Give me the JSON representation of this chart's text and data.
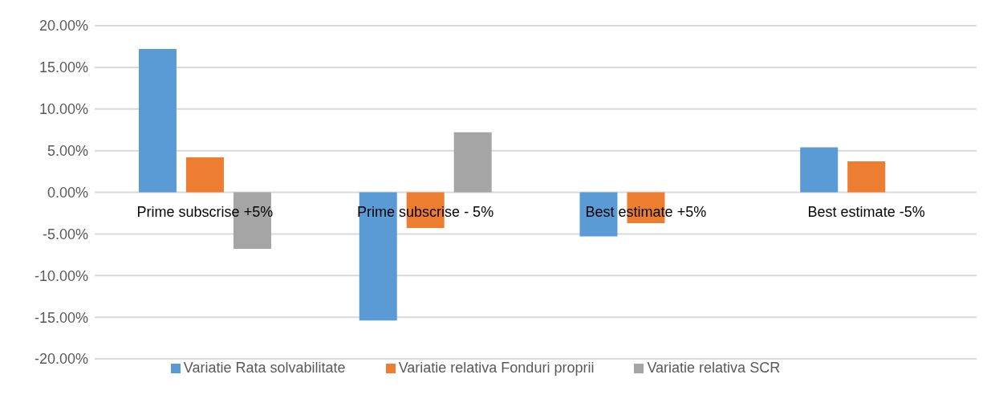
{
  "chart_data": {
    "type": "bar",
    "categories": [
      "Prime subscrise +5%",
      "Prime subscrise - 5%",
      "Best estimate +5%",
      "Best estimate -5%"
    ],
    "series": [
      {
        "name": "Variatie Rata solvabilitate",
        "color": "#5b9bd5",
        "values": [
          17.2,
          -15.4,
          -5.3,
          5.4
        ]
      },
      {
        "name": "Variatie relativa Fonduri proprii",
        "color": "#ed7d31",
        "values": [
          4.2,
          -4.3,
          -3.7,
          3.7
        ]
      },
      {
        "name": "Variatie relativa SCR",
        "color": "#a5a5a5",
        "values": [
          -6.8,
          7.2,
          0,
          0
        ]
      }
    ],
    "ylim": [
      -20,
      20
    ],
    "yticks": [
      {
        "value": -20,
        "label": "-20.00%"
      },
      {
        "value": -15,
        "label": "-15.00%"
      },
      {
        "value": -10,
        "label": "-10.00%"
      },
      {
        "value": -5,
        "label": "-5.00%"
      },
      {
        "value": 0,
        "label": "0.00%"
      },
      {
        "value": 5,
        "label": "5.00%"
      },
      {
        "value": 10,
        "label": "10.00%"
      },
      {
        "value": 15,
        "label": "15.00%"
      },
      {
        "value": 20,
        "label": "20.00%"
      }
    ],
    "grid": "y",
    "legend": "bottom"
  }
}
